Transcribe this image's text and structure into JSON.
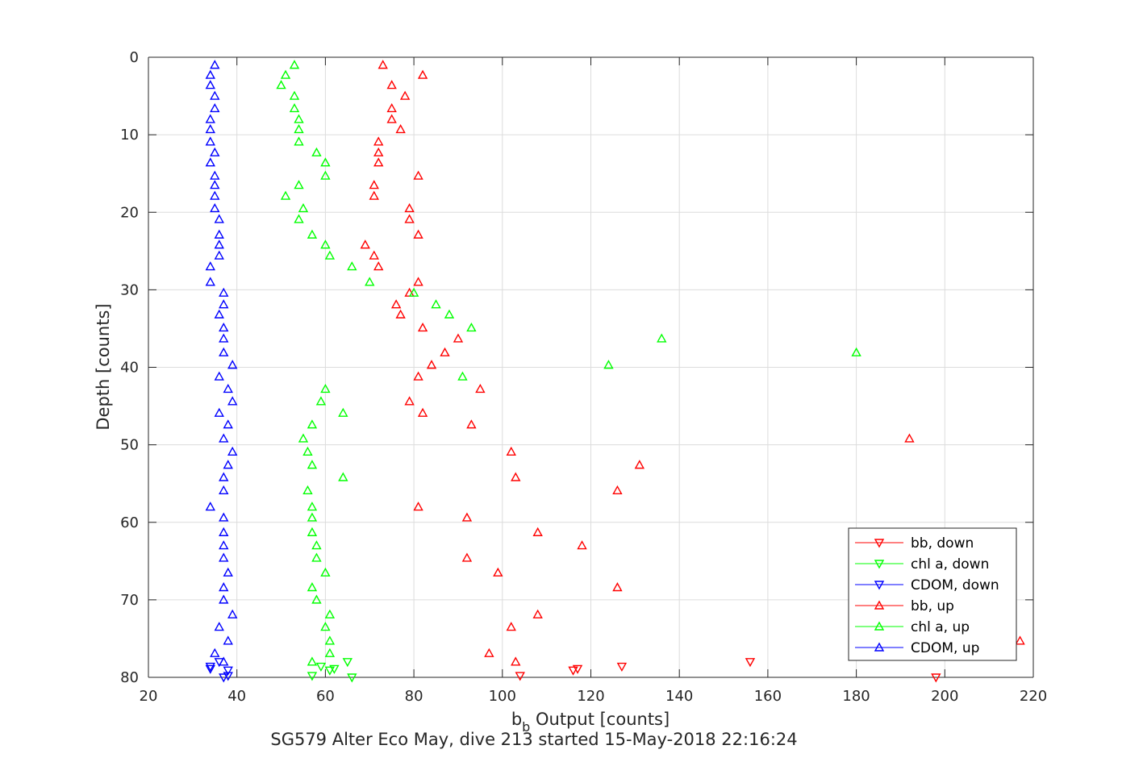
{
  "chart_data": {
    "type": "scatter",
    "xlabel": "b",
    "xlabel_sub": "b",
    "xlabel_rest": " Output [counts]",
    "ylabel": "Depth [counts]",
    "caption": "SG579 Alter Eco May, dive 213 started 15-May-2018 22:16:24",
    "xlim": [
      20,
      220
    ],
    "ylim": [
      0,
      80
    ],
    "y_reversed": true,
    "grid": true,
    "legend_position": "bottom-right",
    "x_ticks": [
      20,
      40,
      60,
      80,
      100,
      120,
      140,
      160,
      180,
      200,
      220
    ],
    "y_ticks": [
      0,
      10,
      20,
      30,
      40,
      50,
      60,
      70,
      80
    ],
    "colors": {
      "red": "#ff0000",
      "green": "#00ff00",
      "blue": "#0000ff",
      "axis": "#262626",
      "grid": "#dcdcdc"
    },
    "series": [
      {
        "name": "bb, down",
        "color": "#ff0000",
        "marker": "triangle-down",
        "points": [
          [
            198,
            80.0
          ],
          [
            104,
            79.8
          ],
          [
            116,
            79.1
          ],
          [
            117,
            78.9
          ],
          [
            127,
            78.6
          ],
          [
            156,
            78.0
          ]
        ]
      },
      {
        "name": "chl a, down",
        "color": "#00ff00",
        "marker": "triangle-down",
        "points": [
          [
            66,
            80.0
          ],
          [
            57,
            79.8
          ],
          [
            61,
            79.1
          ],
          [
            62,
            78.9
          ],
          [
            59,
            78.6
          ],
          [
            65,
            78.0
          ]
        ]
      },
      {
        "name": "CDOM, down",
        "color": "#0000ff",
        "marker": "triangle-down",
        "points": [
          [
            37,
            80.0
          ],
          [
            38,
            79.8
          ],
          [
            38,
            79.1
          ],
          [
            34,
            78.9
          ],
          [
            34,
            78.6
          ],
          [
            36,
            78.0
          ]
        ]
      },
      {
        "name": "bb, up",
        "color": "#ff0000",
        "marker": "triangle-up",
        "points": [
          [
            73,
            1.0
          ],
          [
            82,
            2.3
          ],
          [
            75,
            3.6
          ],
          [
            78,
            5.0
          ],
          [
            75,
            6.6
          ],
          [
            75,
            8.0
          ],
          [
            77,
            9.3
          ],
          [
            72,
            10.9
          ],
          [
            72,
            12.3
          ],
          [
            72,
            13.6
          ],
          [
            81,
            15.3
          ],
          [
            71,
            16.5
          ],
          [
            71,
            17.9
          ],
          [
            79,
            19.5
          ],
          [
            79,
            20.9
          ],
          [
            81,
            22.9
          ],
          [
            69,
            24.2
          ],
          [
            71,
            25.6
          ],
          [
            72,
            27.0
          ],
          [
            81,
            29.0
          ],
          [
            79,
            30.4
          ],
          [
            76,
            31.9
          ],
          [
            77,
            33.2
          ],
          [
            82,
            34.9
          ],
          [
            90,
            36.3
          ],
          [
            87,
            38.1
          ],
          [
            84,
            39.7
          ],
          [
            81,
            41.2
          ],
          [
            95,
            42.8
          ],
          [
            79,
            44.4
          ],
          [
            82,
            45.9
          ],
          [
            93,
            47.4
          ],
          [
            192,
            49.2
          ],
          [
            102,
            50.9
          ],
          [
            131,
            52.6
          ],
          [
            103,
            54.2
          ],
          [
            126,
            55.9
          ],
          [
            81,
            58.0
          ],
          [
            92,
            59.4
          ],
          [
            108,
            61.3
          ],
          [
            118,
            63.0
          ],
          [
            92,
            64.6
          ],
          [
            99,
            66.5
          ],
          [
            126,
            68.4
          ],
          [
            108,
            71.9
          ],
          [
            102,
            73.5
          ],
          [
            217,
            75.3
          ],
          [
            97,
            76.9
          ],
          [
            103,
            78.0
          ]
        ]
      },
      {
        "name": "chl a, up",
        "color": "#00ff00",
        "marker": "triangle-up",
        "points": [
          [
            53,
            1.0
          ],
          [
            51,
            2.3
          ],
          [
            50,
            3.6
          ],
          [
            53,
            5.0
          ],
          [
            53,
            6.6
          ],
          [
            54,
            8.0
          ],
          [
            54,
            9.3
          ],
          [
            54,
            10.9
          ],
          [
            58,
            12.3
          ],
          [
            60,
            13.6
          ],
          [
            60,
            15.3
          ],
          [
            54,
            16.5
          ],
          [
            51,
            17.9
          ],
          [
            55,
            19.5
          ],
          [
            54,
            20.9
          ],
          [
            57,
            22.9
          ],
          [
            60,
            24.2
          ],
          [
            61,
            25.6
          ],
          [
            66,
            27.0
          ],
          [
            70,
            29.0
          ],
          [
            80,
            30.4
          ],
          [
            85,
            31.9
          ],
          [
            88,
            33.2
          ],
          [
            93,
            34.9
          ],
          [
            136,
            36.3
          ],
          [
            180,
            38.1
          ],
          [
            124,
            39.7
          ],
          [
            91,
            41.2
          ],
          [
            60,
            42.8
          ],
          [
            59,
            44.4
          ],
          [
            64,
            45.9
          ],
          [
            57,
            47.4
          ],
          [
            55,
            49.2
          ],
          [
            56,
            50.9
          ],
          [
            57,
            52.6
          ],
          [
            64,
            54.2
          ],
          [
            56,
            55.9
          ],
          [
            57,
            58.0
          ],
          [
            57,
            59.4
          ],
          [
            57,
            61.3
          ],
          [
            58,
            63.0
          ],
          [
            58,
            64.6
          ],
          [
            60,
            66.5
          ],
          [
            57,
            68.4
          ],
          [
            58,
            70.0
          ],
          [
            61,
            71.9
          ],
          [
            60,
            73.5
          ],
          [
            61,
            75.3
          ],
          [
            61,
            76.9
          ],
          [
            57,
            78.0
          ]
        ]
      },
      {
        "name": "CDOM, up",
        "color": "#0000ff",
        "marker": "triangle-up",
        "points": [
          [
            35,
            1.0
          ],
          [
            34,
            2.3
          ],
          [
            34,
            3.6
          ],
          [
            35,
            5.0
          ],
          [
            35,
            6.6
          ],
          [
            34,
            8.0
          ],
          [
            34,
            9.3
          ],
          [
            34,
            10.9
          ],
          [
            35,
            12.3
          ],
          [
            34,
            13.6
          ],
          [
            35,
            15.3
          ],
          [
            35,
            16.5
          ],
          [
            35,
            17.9
          ],
          [
            35,
            19.5
          ],
          [
            36,
            20.9
          ],
          [
            36,
            22.9
          ],
          [
            36,
            24.2
          ],
          [
            36,
            25.6
          ],
          [
            34,
            27.0
          ],
          [
            34,
            29.0
          ],
          [
            37,
            30.4
          ],
          [
            37,
            31.9
          ],
          [
            36,
            33.2
          ],
          [
            37,
            34.9
          ],
          [
            37,
            36.3
          ],
          [
            37,
            38.1
          ],
          [
            39,
            39.7
          ],
          [
            36,
            41.2
          ],
          [
            38,
            42.8
          ],
          [
            39,
            44.4
          ],
          [
            36,
            45.9
          ],
          [
            38,
            47.4
          ],
          [
            37,
            49.2
          ],
          [
            39,
            50.9
          ],
          [
            38,
            52.6
          ],
          [
            37,
            54.2
          ],
          [
            37,
            55.9
          ],
          [
            34,
            58.0
          ],
          [
            37,
            59.4
          ],
          [
            37,
            61.3
          ],
          [
            37,
            63.0
          ],
          [
            37,
            64.6
          ],
          [
            38,
            66.5
          ],
          [
            37,
            68.4
          ],
          [
            37,
            70.0
          ],
          [
            39,
            71.9
          ],
          [
            36,
            73.5
          ],
          [
            38,
            75.3
          ],
          [
            35,
            76.9
          ],
          [
            37,
            78.0
          ]
        ]
      }
    ]
  }
}
